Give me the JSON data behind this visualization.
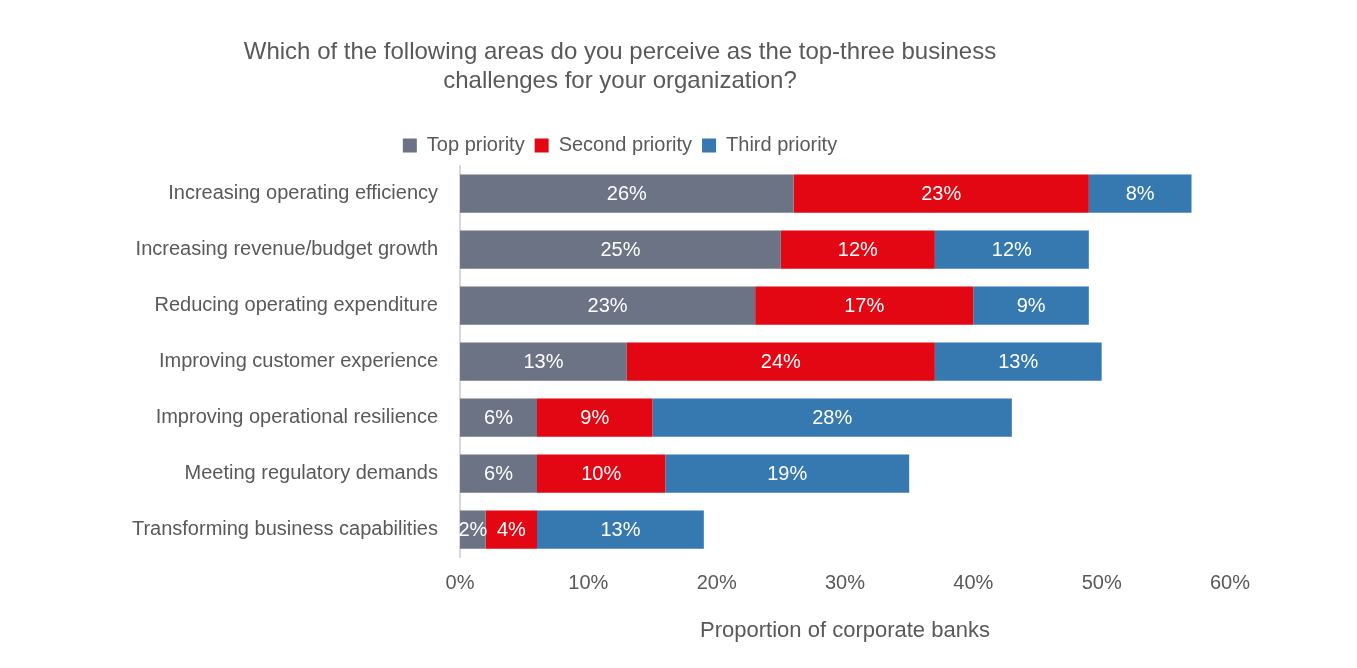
{
  "chart_data": {
    "type": "bar",
    "orientation": "horizontal",
    "stacked": true,
    "title": "Which of the following areas do you perceive as the top-three business challenges for your organization?",
    "xlabel": "Proportion of corporate banks",
    "categories": [
      "Increasing operating efficiency",
      "Increasing revenue/budget growth",
      "Reducing operating expenditure",
      "Improving customer experience",
      "Improving operational resilience",
      "Meeting regulatory demands",
      "Transforming business capabilities"
    ],
    "series": [
      {
        "name": "Top priority",
        "color": "#6b7385",
        "values": [
          26,
          25,
          23,
          13,
          6,
          6,
          2
        ],
        "value_labels": [
          "26%",
          "25%",
          "23%",
          "13%",
          "6%",
          "6%",
          "2%"
        ]
      },
      {
        "name": "Second priority",
        "color": "#e30613",
        "values": [
          23,
          12,
          17,
          24,
          9,
          10,
          4
        ],
        "value_labels": [
          "23%",
          "12%",
          "17%",
          "24%",
          "9%",
          "10%",
          "4%"
        ]
      },
      {
        "name": "Third priority",
        "color": "#3579b0",
        "values": [
          8,
          12,
          9,
          13,
          28,
          19,
          13
        ],
        "value_labels": [
          "8%",
          "12%",
          "9%",
          "13%",
          "28%",
          "19%",
          "13%"
        ]
      }
    ],
    "xlim": [
      0,
      60
    ],
    "xticks": [
      {
        "value": 0,
        "label": "0%"
      },
      {
        "value": 10,
        "label": "10%"
      },
      {
        "value": 20,
        "label": "20%"
      },
      {
        "value": 30,
        "label": "30%"
      },
      {
        "value": 40,
        "label": "40%"
      },
      {
        "value": 50,
        "label": "50%"
      },
      {
        "value": 60,
        "label": "60%"
      }
    ],
    "grid": false,
    "legend": "top"
  }
}
